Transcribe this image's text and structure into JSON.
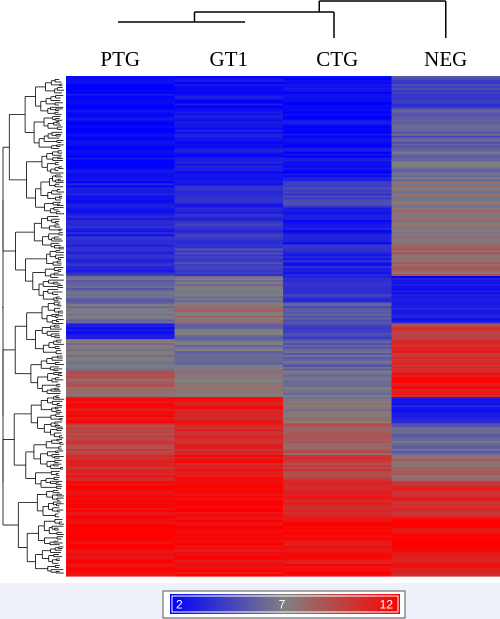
{
  "chart_data": {
    "type": "heatmap",
    "title": "",
    "xlabel": "",
    "ylabel": "",
    "columns": [
      "PTG",
      "GT1",
      "CTG",
      "NEG"
    ],
    "column_dendrogram": {
      "merges": [
        [
          "PTG",
          "GT1"
        ],
        [
          "PTG+GT1",
          "CTG"
        ],
        [
          "PTG+GT1+CTG",
          "NEG"
        ]
      ]
    },
    "row_dendrogram": true,
    "color_scale": {
      "min": 2,
      "mid": 7,
      "max": 12,
      "min_label": "2",
      "mid_label": "7",
      "max_label": "12",
      "colors": {
        "low": "#0000ff",
        "mid": "#808080",
        "high": "#ff0000"
      }
    },
    "row_blocks": [
      {
        "fraction": 0.06,
        "values": [
          2.2,
          2.5,
          2.2,
          4.5
        ]
      },
      {
        "fraction": 0.08,
        "values": [
          2.3,
          2.7,
          2.4,
          5.5
        ]
      },
      {
        "fraction": 0.06,
        "values": [
          2.5,
          3.0,
          2.6,
          6.2
        ]
      },
      {
        "fraction": 0.05,
        "values": [
          2.8,
          3.3,
          4.6,
          7.0
        ]
      },
      {
        "fraction": 0.07,
        "values": [
          3.2,
          3.8,
          3.0,
          7.3
        ]
      },
      {
        "fraction": 0.06,
        "values": [
          3.8,
          4.5,
          3.4,
          8.2
        ]
      },
      {
        "fraction": 0.05,
        "values": [
          5.8,
          6.8,
          4.0,
          2.6
        ]
      },
      {
        "fraction": 0.04,
        "values": [
          6.5,
          7.8,
          5.2,
          3.2
        ]
      },
      {
        "fraction": 0.03,
        "values": [
          3.0,
          6.5,
          4.5,
          9.5
        ]
      },
      {
        "fraction": 0.06,
        "values": [
          6.8,
          6.4,
          5.8,
          10.2
        ]
      },
      {
        "fraction": 0.05,
        "values": [
          8.2,
          7.2,
          6.2,
          11.2
        ]
      },
      {
        "fraction": 0.05,
        "values": [
          11.2,
          11.0,
          7.0,
          3.0
        ]
      },
      {
        "fraction": 0.06,
        "values": [
          9.6,
          10.4,
          8.6,
          6.0
        ]
      },
      {
        "fraction": 0.05,
        "values": [
          10.6,
          11.2,
          9.6,
          8.2
        ]
      },
      {
        "fraction": 0.07,
        "values": [
          11.8,
          11.7,
          10.6,
          10.4
        ]
      },
      {
        "fraction": 0.06,
        "values": [
          12.0,
          11.8,
          11.4,
          11.8
        ]
      },
      {
        "fraction": 0.05,
        "values": [
          11.6,
          11.5,
          11.4,
          10.8
        ]
      }
    ]
  }
}
